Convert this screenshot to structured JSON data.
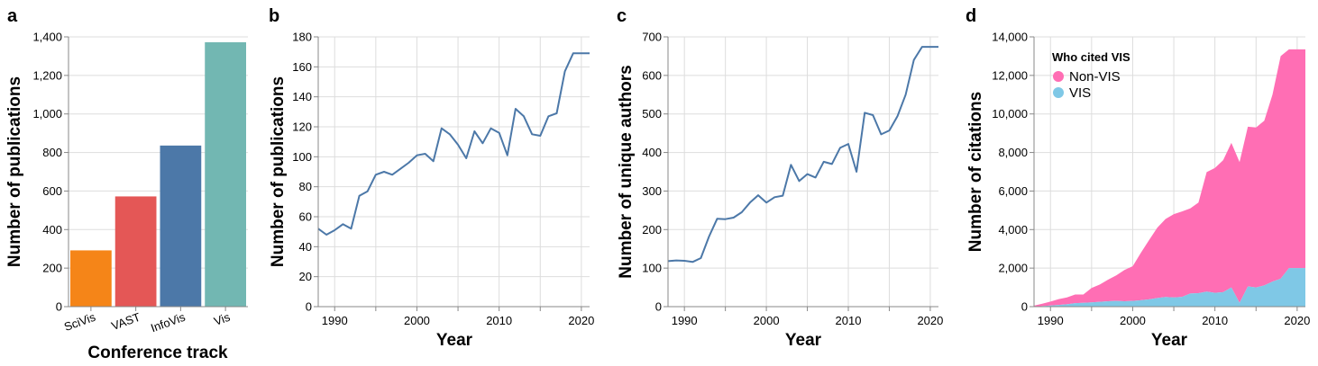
{
  "panels": [
    {
      "tag": "a"
    },
    {
      "tag": "b"
    },
    {
      "tag": "c"
    },
    {
      "tag": "d"
    }
  ],
  "chart_data": [
    {
      "type": "bar",
      "tag": "a",
      "categories": [
        "SciVis",
        "VAST",
        "InfoVis",
        "Vis"
      ],
      "values": [
        292,
        572,
        836,
        1372
      ],
      "colors": [
        "#f58518",
        "#e45756",
        "#4c78a8",
        "#72b7b2"
      ],
      "xlabel": "Conference track",
      "ylabel": "Number of publications",
      "ylim": [
        0,
        1400
      ],
      "yticks": [
        0,
        200,
        400,
        600,
        800,
        1000,
        1200,
        1400
      ],
      "ytick_labels": [
        "0",
        "200",
        "400",
        "600",
        "800",
        "1,000",
        "1,200",
        "1,400"
      ],
      "grid": true
    },
    {
      "type": "line",
      "tag": "b",
      "x": [
        1988,
        1989,
        1990,
        1991,
        1992,
        1993,
        1994,
        1995,
        1996,
        1997,
        1998,
        1999,
        2000,
        2001,
        2002,
        2003,
        2004,
        2005,
        2006,
        2007,
        2008,
        2009,
        2010,
        2011,
        2012,
        2013,
        2014,
        2015,
        2016,
        2017,
        2018,
        2019,
        2020,
        2021
      ],
      "y": [
        52,
        48,
        51,
        55,
        52,
        74,
        77,
        88,
        90,
        88,
        92,
        96,
        101,
        102,
        97,
        119,
        115,
        108,
        99,
        117,
        109,
        119,
        116,
        101,
        132,
        127,
        115,
        114,
        127,
        129,
        157,
        169,
        169,
        169
      ],
      "color": "#4c78a8",
      "xlabel": "Year",
      "ylabel": "Number of publications",
      "xlim": [
        1988,
        2021
      ],
      "ylim": [
        0,
        180
      ],
      "xticks": [
        1990,
        2000,
        2010,
        2020
      ],
      "yticks": [
        0,
        20,
        40,
        60,
        80,
        100,
        120,
        140,
        160,
        180
      ],
      "grid": true
    },
    {
      "type": "line",
      "tag": "c",
      "x": [
        1988,
        1989,
        1990,
        1991,
        1992,
        1993,
        1994,
        1995,
        1996,
        1997,
        1998,
        1999,
        2000,
        2001,
        2002,
        2003,
        2004,
        2005,
        2006,
        2007,
        2008,
        2009,
        2010,
        2011,
        2012,
        2013,
        2014,
        2015,
        2016,
        2017,
        2018,
        2019,
        2020,
        2021
      ],
      "y": [
        118,
        120,
        119,
        116,
        126,
        182,
        228,
        227,
        231,
        245,
        270,
        289,
        270,
        284,
        288,
        368,
        326,
        344,
        335,
        376,
        370,
        412,
        422,
        350,
        503,
        497,
        447,
        457,
        494,
        550,
        640,
        674,
        674,
        674
      ],
      "color": "#4c78a8",
      "xlabel": "Year",
      "ylabel": "Number of unique authors",
      "xlim": [
        1988,
        2021
      ],
      "ylim": [
        0,
        700
      ],
      "xticks": [
        1990,
        2000,
        2010,
        2020
      ],
      "yticks": [
        0,
        100,
        200,
        300,
        400,
        500,
        600,
        700
      ],
      "grid": true
    },
    {
      "type": "area",
      "tag": "d",
      "stacked": true,
      "x": [
        1988,
        1989,
        1990,
        1991,
        1992,
        1993,
        1994,
        1995,
        1996,
        1997,
        1998,
        1999,
        2000,
        2001,
        2002,
        2003,
        2004,
        2005,
        2006,
        2007,
        2008,
        2009,
        2010,
        2011,
        2012,
        2013,
        2014,
        2015,
        2016,
        2017,
        2018,
        2019,
        2020,
        2021
      ],
      "series": [
        {
          "name": "VIS",
          "color": "#7fc8e6",
          "values": [
            0,
            30,
            60,
            90,
            120,
            180,
            200,
            220,
            250,
            280,
            300,
            280,
            300,
            330,
            380,
            450,
            500,
            480,
            510,
            680,
            700,
            780,
            720,
            750,
            1000,
            200,
            1050,
            1000,
            1100,
            1300,
            1450,
            2000,
            2000,
            2000
          ]
        },
        {
          "name": "Non-VIS",
          "color": "#ff6eb4",
          "values": [
            50,
            120,
            200,
            300,
            360,
            450,
            430,
            750,
            900,
            1120,
            1320,
            1620,
            1800,
            2470,
            3080,
            3650,
            4050,
            4320,
            4430,
            4420,
            4700,
            6200,
            6480,
            6850,
            7500,
            7300,
            8290,
            8300,
            8550,
            9700,
            11550,
            11350,
            11350,
            11350
          ]
        }
      ],
      "legend_title": "Who cited VIS",
      "legend_order": [
        "Non-VIS",
        "VIS"
      ],
      "legend_position": "top-left",
      "xlabel": "Year",
      "ylabel": "Number of citations",
      "xlim": [
        1988,
        2021
      ],
      "ylim": [
        0,
        14000
      ],
      "xticks": [
        1990,
        2000,
        2010,
        2020
      ],
      "yticks": [
        0,
        2000,
        4000,
        6000,
        8000,
        10000,
        12000,
        14000
      ],
      "ytick_labels": [
        "0",
        "2,000",
        "4,000",
        "6,000",
        "8,000",
        "10,000",
        "12,000",
        "14,000"
      ],
      "grid": true
    }
  ]
}
